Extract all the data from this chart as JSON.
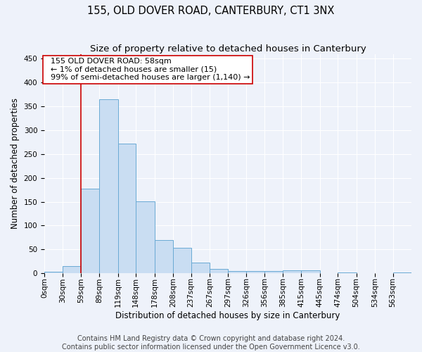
{
  "title": "155, OLD DOVER ROAD, CANTERBURY, CT1 3NX",
  "subtitle": "Size of property relative to detached houses in Canterbury",
  "xlabel": "Distribution of detached houses by size in Canterbury",
  "ylabel": "Number of detached properties",
  "bar_edges": [
    0,
    30,
    59,
    89,
    119,
    148,
    178,
    208,
    237,
    267,
    297,
    326,
    356,
    385,
    415,
    445,
    474,
    504,
    534,
    563,
    593
  ],
  "bar_heights": [
    3,
    15,
    178,
    365,
    272,
    151,
    70,
    54,
    22,
    9,
    5,
    5,
    5,
    6,
    6,
    0,
    2,
    0,
    0,
    2
  ],
  "bar_color": "#c9ddf2",
  "bar_edge_color": "#6aaad4",
  "property_line_x": 59,
  "property_line_color": "#cc0000",
  "annotation_text": "  155 OLD DOVER ROAD: 58sqm\n  ← 1% of detached houses are smaller (15)\n  99% of semi-detached houses are larger (1,140) →",
  "annotation_box_color": "#ffffff",
  "annotation_box_edge_color": "#cc0000",
  "ylim": [
    0,
    460
  ],
  "yticks": [
    0,
    50,
    100,
    150,
    200,
    250,
    300,
    350,
    400,
    450
  ],
  "footer_line1": "Contains HM Land Registry data © Crown copyright and database right 2024.",
  "footer_line2": "Contains public sector information licensed under the Open Government Licence v3.0.",
  "background_color": "#eef2fa",
  "grid_color": "#ffffff",
  "title_fontsize": 10.5,
  "subtitle_fontsize": 9.5,
  "axis_label_fontsize": 8.5,
  "tick_fontsize": 7.5,
  "annotation_fontsize": 8,
  "footer_fontsize": 7
}
